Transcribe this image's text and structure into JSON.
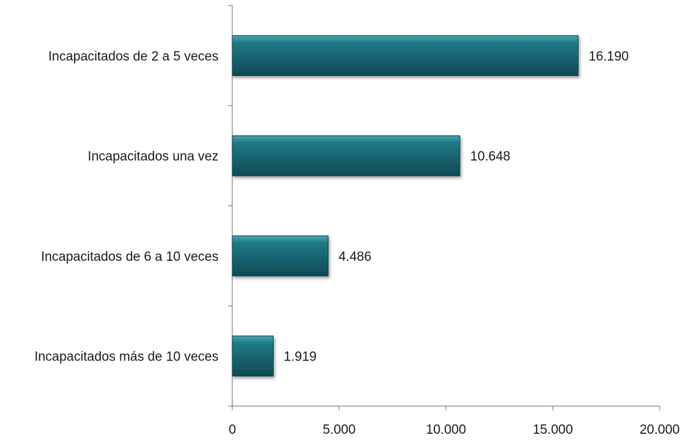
{
  "chart_data": {
    "type": "bar",
    "orientation": "horizontal",
    "categories": [
      "Incapacitados de 2 a 5 veces",
      "Incapacitados una vez",
      "Incapacitados de 6 a 10 veces",
      "Incapacitados más de 10 veces"
    ],
    "values": [
      16190,
      10648,
      4486,
      1919
    ],
    "value_labels": [
      "16.190",
      "10.648",
      "4.486",
      "1.919"
    ],
    "xlim": [
      0,
      20000
    ],
    "x_ticks": [
      0,
      5000,
      10000,
      15000,
      20000
    ],
    "x_tick_labels": [
      "0",
      "5.000",
      "10.000",
      "15.000",
      "20.000"
    ],
    "title": "",
    "xlabel": "",
    "ylabel": "",
    "grid": false,
    "legend": "none",
    "bar_color": "#1b6f7d"
  }
}
